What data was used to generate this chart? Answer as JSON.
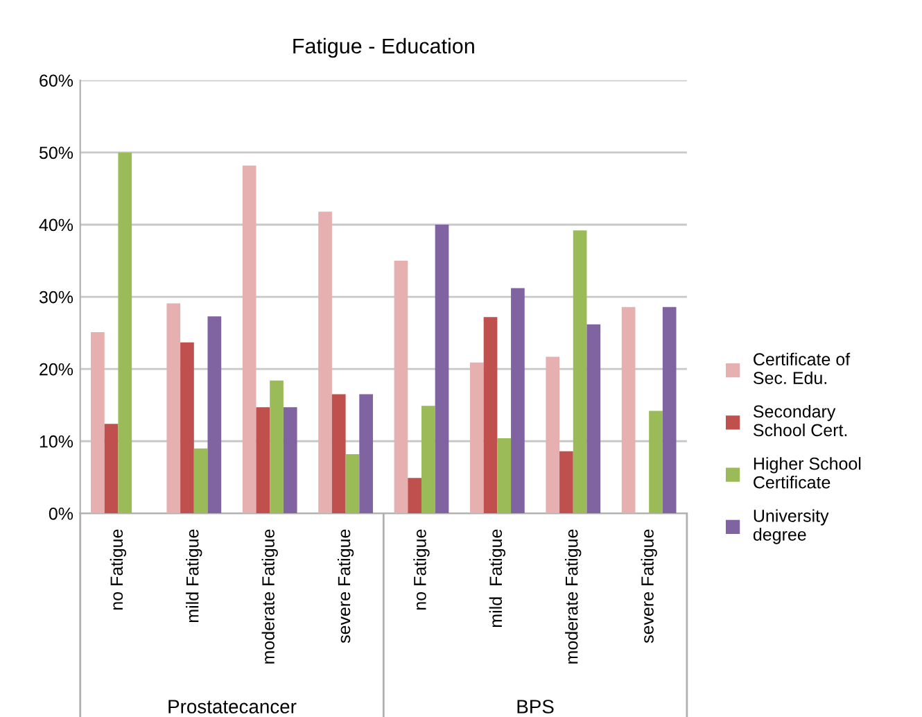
{
  "chart_data": {
    "type": "bar",
    "title": "Fatigue - Education",
    "categories": [
      "no Fatigue",
      "mild Fatigue",
      "moderate Fatigue",
      "severe Fatigue",
      "no Fatigue",
      "mild  Fatigue",
      "moderate Fatigue",
      "severe Fatigue"
    ],
    "series": [
      {
        "name": "Certificate of\nSec. Edu.",
        "color": "#e6b0b0",
        "values": [
          25.1,
          29.1,
          48.2,
          41.8,
          35.0,
          20.9,
          21.7,
          28.6
        ]
      },
      {
        "name": "Secondary\nSchool Cert.",
        "color": "#c0504d",
        "values": [
          12.4,
          23.7,
          14.7,
          16.5,
          4.9,
          27.2,
          8.6,
          null
        ]
      },
      {
        "name": "Higher School\nCertificate",
        "color": "#9bbb59",
        "values": [
          50.0,
          9.0,
          18.4,
          8.2,
          14.9,
          10.4,
          39.2,
          14.2
        ]
      },
      {
        "name": "University\ndegree",
        "color": "#8064a2",
        "values": [
          null,
          27.3,
          14.7,
          16.5,
          40.0,
          31.2,
          26.2,
          28.6
        ]
      }
    ],
    "ylim": [
      0,
      60
    ],
    "yticks": [
      {
        "value": 0,
        "label": "0%"
      },
      {
        "value": 10,
        "label": "10%"
      },
      {
        "value": 20,
        "label": "20%"
      },
      {
        "value": 30,
        "label": "30%"
      },
      {
        "value": 40,
        "label": "40%"
      },
      {
        "value": 50,
        "label": "50%"
      },
      {
        "value": 60,
        "label": "60%"
      }
    ],
    "grid": "y",
    "legend": "right",
    "annotations": [
      "Prostatecancer",
      "BPS"
    ]
  }
}
